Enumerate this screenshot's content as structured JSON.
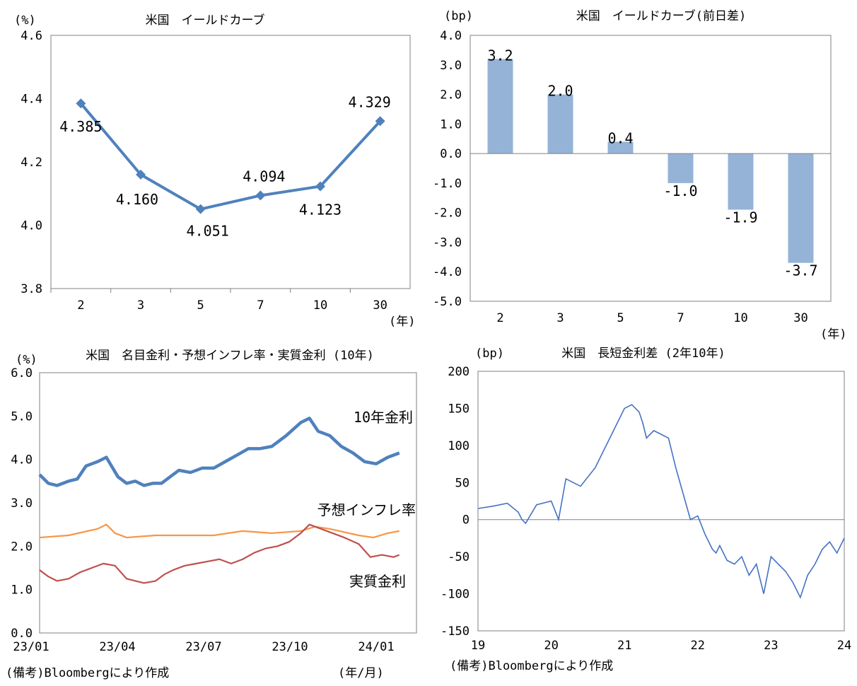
{
  "colors": {
    "line_blue": "#4F81BD",
    "bar_blue": "#95B3D7",
    "orange": "#F79646",
    "red": "#C0504D",
    "spread_blue": "#4472C4",
    "axis": "#808080"
  },
  "note_left": "(備考)Bloombergにより作成",
  "note_right": "(備考)Bloombergにより作成",
  "chart_data": [
    {
      "type": "line",
      "title": "米国　イールドカーブ",
      "ylabel": "(%)",
      "xlabel": "(年)",
      "categories": [
        "2",
        "3",
        "5",
        "7",
        "10",
        "30"
      ],
      "values": [
        4.385,
        4.16,
        4.051,
        4.094,
        4.123,
        4.329
      ],
      "data_labels": [
        "4.385",
        "4.160",
        "4.051",
        "4.094",
        "4.123",
        "4.329"
      ],
      "ylim": [
        3.8,
        4.6
      ],
      "yticks": [
        "3.8",
        "4.0",
        "4.2",
        "4.4",
        "4.6"
      ],
      "marker": "diamond"
    },
    {
      "type": "bar",
      "title": "米国　イールドカーブ(前日差)",
      "ylabel": "(bp)",
      "xlabel": "(年)",
      "categories": [
        "2",
        "3",
        "5",
        "7",
        "10",
        "30"
      ],
      "values": [
        3.2,
        2.0,
        0.4,
        -1.0,
        -1.9,
        -3.7
      ],
      "data_labels": [
        "3.2",
        "2.0",
        "0.4",
        "-1.0",
        "-1.9",
        "-3.7"
      ],
      "ylim": [
        -5.0,
        4.0
      ],
      "yticks": [
        "-5.0",
        "-4.0",
        "-3.0",
        "-2.0",
        "-1.0",
        "0.0",
        "1.0",
        "2.0",
        "3.0",
        "4.0"
      ]
    },
    {
      "type": "line",
      "title": "米国　名目金利・予想インフレ率・実質金利 (10年)",
      "ylabel": "(%)",
      "xlabel": "(年/月)",
      "ylim": [
        0.0,
        6.0
      ],
      "yticks": [
        "0.0",
        "1.0",
        "2.0",
        "3.0",
        "4.0",
        "5.0",
        "6.0"
      ],
      "xticks": [
        "23/01",
        "23/04",
        "23/07",
        "23/10",
        "24/01"
      ],
      "x_range": [
        0,
        12.6
      ],
      "series": [
        {
          "name": "10年金利",
          "x": [
            0,
            0.3,
            0.6,
            1.0,
            1.3,
            1.6,
            2.0,
            2.3,
            2.7,
            3.0,
            3.3,
            3.6,
            3.9,
            4.2,
            4.5,
            4.8,
            5.2,
            5.6,
            6.0,
            6.4,
            6.8,
            7.2,
            7.6,
            8.0,
            8.5,
            9.0,
            9.3,
            9.6,
            10.0,
            10.4,
            10.8,
            11.2,
            11.6,
            12.0,
            12.4
          ],
          "y": [
            3.65,
            3.45,
            3.4,
            3.5,
            3.55,
            3.85,
            3.95,
            4.05,
            3.6,
            3.45,
            3.5,
            3.4,
            3.45,
            3.45,
            3.6,
            3.75,
            3.7,
            3.8,
            3.8,
            3.95,
            4.1,
            4.25,
            4.25,
            4.3,
            4.55,
            4.85,
            4.95,
            4.65,
            4.55,
            4.3,
            4.15,
            3.95,
            3.9,
            4.05,
            4.15
          ]
        },
        {
          "name": "予想インフレ率",
          "x": [
            0,
            1.0,
            2.0,
            2.3,
            2.6,
            3.0,
            4.0,
            5.0,
            6.0,
            7.0,
            8.0,
            9.0,
            9.5,
            10.0,
            11.0,
            11.5,
            12.0,
            12.4
          ],
          "y": [
            2.2,
            2.25,
            2.4,
            2.5,
            2.3,
            2.2,
            2.25,
            2.25,
            2.25,
            2.35,
            2.3,
            2.35,
            2.45,
            2.4,
            2.25,
            2.2,
            2.3,
            2.35
          ]
        },
        {
          "name": "実質金利",
          "x": [
            0,
            0.3,
            0.6,
            1.0,
            1.4,
            1.8,
            2.2,
            2.6,
            3.0,
            3.3,
            3.6,
            4.0,
            4.3,
            4.6,
            5.0,
            5.4,
            5.8,
            6.2,
            6.6,
            7.0,
            7.4,
            7.8,
            8.2,
            8.6,
            9.0,
            9.3,
            9.7,
            10.1,
            10.5,
            11.0,
            11.4,
            11.8,
            12.2,
            12.4
          ],
          "y": [
            1.45,
            1.3,
            1.2,
            1.25,
            1.4,
            1.5,
            1.6,
            1.55,
            1.25,
            1.2,
            1.15,
            1.2,
            1.35,
            1.45,
            1.55,
            1.6,
            1.65,
            1.7,
            1.6,
            1.7,
            1.85,
            1.95,
            2.0,
            2.1,
            2.3,
            2.5,
            2.4,
            2.3,
            2.2,
            2.05,
            1.75,
            1.8,
            1.75,
            1.8
          ]
        }
      ],
      "series_labels": [
        "10年金利",
        "予想インフレ率",
        "実質金利"
      ]
    },
    {
      "type": "line",
      "title": "米国　長短金利差 (2年10年)",
      "ylabel": "(bp)",
      "xlabel": "",
      "ylim": [
        -150,
        200
      ],
      "yticks": [
        "-150",
        "-100",
        "-50",
        "0",
        "50",
        "100",
        "150",
        "200"
      ],
      "xticks": [
        "19",
        "20",
        "21",
        "22",
        "23",
        "24"
      ],
      "x_range": [
        19,
        24
      ],
      "series": [
        {
          "name": "長短金利差",
          "x": [
            19.0,
            19.2,
            19.4,
            19.55,
            19.6,
            19.65,
            19.8,
            20.0,
            20.1,
            20.2,
            20.3,
            20.4,
            20.6,
            20.8,
            21.0,
            21.1,
            21.2,
            21.25,
            21.3,
            21.4,
            21.5,
            21.6,
            21.7,
            21.8,
            21.9,
            22.0,
            22.1,
            22.2,
            22.25,
            22.3,
            22.4,
            22.5,
            22.6,
            22.7,
            22.8,
            22.9,
            23.0,
            23.1,
            23.2,
            23.3,
            23.4,
            23.5,
            23.6,
            23.7,
            23.8,
            23.9,
            24.0
          ],
          "y": [
            15,
            18,
            22,
            10,
            0,
            -5,
            20,
            25,
            0,
            55,
            50,
            45,
            70,
            110,
            150,
            155,
            145,
            130,
            110,
            120,
            115,
            110,
            70,
            35,
            0,
            5,
            -20,
            -40,
            -45,
            -35,
            -55,
            -60,
            -50,
            -75,
            -60,
            -100,
            -50,
            -60,
            -70,
            -85,
            -105,
            -75,
            -60,
            -40,
            -30,
            -45,
            -25
          ]
        }
      ]
    }
  ]
}
